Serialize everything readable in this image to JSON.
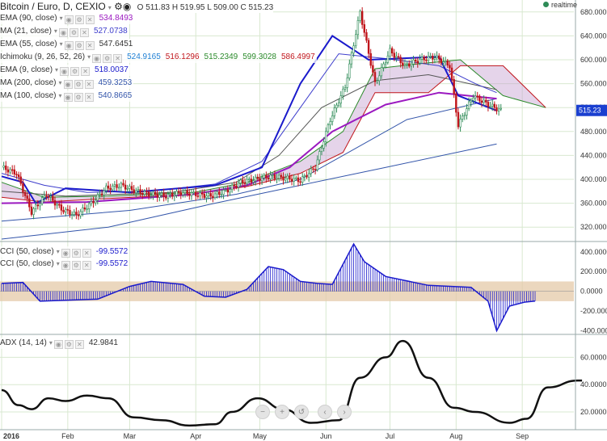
{
  "header": {
    "title": "Bitcoin / Euro, D, CEXIO",
    "ohlc": "O 511.83  H 519.95  L 509.00  C 515.23",
    "realtime_label": "realtime"
  },
  "legend_main": [
    {
      "name": "EMA (90, close)",
      "values": [
        "534.8493"
      ],
      "colors": [
        "#9b19c0"
      ]
    },
    {
      "name": "MA (21, close)",
      "values": [
        "527.0738"
      ],
      "colors": [
        "#3d3dcc"
      ]
    },
    {
      "name": "EMA (55, close)",
      "values": [
        "547.6451"
      ],
      "colors": [
        "#333333"
      ]
    },
    {
      "name": "Ichimoku (9, 26, 52, 26)",
      "values": [
        "524.9165",
        "516.1296",
        "515.2349",
        "599.3028",
        "586.4997"
      ],
      "colors": [
        "#1e7fd4",
        "#c0151b",
        "#2a8a2a",
        "#2a8a2a",
        "#c0151b"
      ]
    },
    {
      "name": "EMA (9, close)",
      "values": [
        "518.0037"
      ],
      "colors": [
        "#1a1acc"
      ]
    },
    {
      "name": "MA (200, close)",
      "values": [
        "459.3253"
      ],
      "colors": [
        "#3355aa"
      ]
    },
    {
      "name": "MA (100, close)",
      "values": [
        "540.8665"
      ],
      "colors": [
        "#3355aa"
      ]
    }
  ],
  "legend_cci": [
    {
      "name": "CCI (50, close)",
      "value": "-99.5572",
      "color": "#1a1acc"
    },
    {
      "name": "CCI (50, close)",
      "value": "-99.5572",
      "color": "#1a1acc"
    }
  ],
  "legend_adx": {
    "name": "ADX (14, 14)",
    "value": "42.9841",
    "color": "#333333"
  },
  "last_price_label": "515.23",
  "colors": {
    "candle_up": "#2e8b57",
    "candle_down": "#c0151b",
    "cloud_fill": "#c6a0d0",
    "cci_band": "#e4c9a8",
    "grid": "#d8e8d0",
    "price_badge": "#1a3fd0"
  },
  "nav_icons": [
    "zoom-out-icon",
    "zoom-in-icon",
    "reset-icon",
    "scroll-left-icon",
    "scroll-right-icon"
  ],
  "chart_data": [
    {
      "type": "candlestick",
      "title": "Bitcoin / Euro, D, CEXIO",
      "x_ticks": [
        "2016",
        "Feb",
        "Mar",
        "Apr",
        "May",
        "Jun",
        "Jul",
        "Aug",
        "Sep"
      ],
      "y_ticks": [
        "320.000",
        "360.000",
        "400.000",
        "440.000",
        "480.000",
        "520.000",
        "560.000",
        "600.000",
        "640.000",
        "680.000"
      ],
      "ylim": [
        300,
        700
      ],
      "grid": true,
      "last_price": 515.23,
      "close_series": [
        {
          "date": "2016-01-01",
          "close": 420
        },
        {
          "date": "2016-01-08",
          "close": 410
        },
        {
          "date": "2016-01-15",
          "close": 345
        },
        {
          "date": "2016-01-22",
          "close": 375
        },
        {
          "date": "2016-01-29",
          "close": 350
        },
        {
          "date": "2016-02-05",
          "close": 340
        },
        {
          "date": "2016-02-12",
          "close": 360
        },
        {
          "date": "2016-02-19",
          "close": 385
        },
        {
          "date": "2016-02-26",
          "close": 390
        },
        {
          "date": "2016-03-04",
          "close": 380
        },
        {
          "date": "2016-03-11",
          "close": 375
        },
        {
          "date": "2016-03-18",
          "close": 372
        },
        {
          "date": "2016-03-25",
          "close": 378
        },
        {
          "date": "2016-04-01",
          "close": 375
        },
        {
          "date": "2016-04-08",
          "close": 372
        },
        {
          "date": "2016-04-15",
          "close": 380
        },
        {
          "date": "2016-04-22",
          "close": 395
        },
        {
          "date": "2016-04-29",
          "close": 400
        },
        {
          "date": "2016-05-06",
          "close": 405
        },
        {
          "date": "2016-05-13",
          "close": 402
        },
        {
          "date": "2016-05-20",
          "close": 398
        },
        {
          "date": "2016-05-27",
          "close": 420
        },
        {
          "date": "2016-06-03",
          "close": 500
        },
        {
          "date": "2016-06-10",
          "close": 555
        },
        {
          "date": "2016-06-17",
          "close": 680
        },
        {
          "date": "2016-06-24",
          "close": 560
        },
        {
          "date": "2016-07-01",
          "close": 615
        },
        {
          "date": "2016-07-08",
          "close": 590
        },
        {
          "date": "2016-07-15",
          "close": 600
        },
        {
          "date": "2016-07-22",
          "close": 605
        },
        {
          "date": "2016-07-29",
          "close": 590
        },
        {
          "date": "2016-08-02",
          "close": 490
        },
        {
          "date": "2016-08-09",
          "close": 540
        },
        {
          "date": "2016-08-16",
          "close": 525
        },
        {
          "date": "2016-08-22",
          "close": 515
        }
      ],
      "indicators": {
        "ema_9": [
          [
            0,
            405
          ],
          [
            10,
            395
          ],
          [
            16,
            360
          ],
          [
            30,
            385
          ],
          [
            60,
            378
          ],
          [
            100,
            390
          ],
          [
            122,
            420
          ],
          [
            140,
            560
          ],
          [
            155,
            640
          ],
          [
            172,
            600
          ],
          [
            205,
            605
          ],
          [
            214,
            540
          ],
          [
            232,
            515
          ]
        ],
        "ma_21": [
          [
            0,
            410
          ],
          [
            20,
            390
          ],
          [
            40,
            378
          ],
          [
            70,
            380
          ],
          [
            100,
            392
          ],
          [
            122,
            430
          ],
          [
            140,
            520
          ],
          [
            158,
            610
          ],
          [
            180,
            602
          ],
          [
            205,
            590
          ],
          [
            222,
            560
          ],
          [
            232,
            545
          ]
        ],
        "ema_55": [
          [
            0,
            380
          ],
          [
            30,
            372
          ],
          [
            80,
            378
          ],
          [
            110,
            395
          ],
          [
            130,
            440
          ],
          [
            150,
            520
          ],
          [
            175,
            565
          ],
          [
            200,
            575
          ],
          [
            232,
            550
          ]
        ],
        "ema_90": [
          [
            0,
            360
          ],
          [
            40,
            362
          ],
          [
            90,
            375
          ],
          [
            115,
            390
          ],
          [
            135,
            420
          ],
          [
            155,
            480
          ],
          [
            180,
            525
          ],
          [
            205,
            545
          ],
          [
            232,
            535
          ]
        ],
        "ma_100": [
          [
            0,
            330
          ],
          [
            60,
            348
          ],
          [
            110,
            375
          ],
          [
            140,
            400
          ],
          [
            160,
            440
          ],
          [
            190,
            500
          ],
          [
            232,
            535
          ]
        ],
        "ma_200": [
          [
            0,
            300
          ],
          [
            50,
            320
          ],
          [
            100,
            360
          ],
          [
            140,
            390
          ],
          [
            180,
            420
          ],
          [
            232,
            459
          ]
        ],
        "kumo_a": [
          [
            0,
            395
          ],
          [
            20,
            370
          ],
          [
            50,
            372
          ],
          [
            90,
            378
          ],
          [
            115,
            395
          ],
          [
            140,
            430
          ],
          [
            160,
            480
          ],
          [
            175,
            585
          ],
          [
            200,
            595
          ],
          [
            215,
            600
          ],
          [
            235,
            540
          ],
          [
            255,
            520
          ]
        ],
        "kumo_b": [
          [
            0,
            370
          ],
          [
            20,
            362
          ],
          [
            50,
            368
          ],
          [
            90,
            375
          ],
          [
            115,
            388
          ],
          [
            140,
            410
          ],
          [
            160,
            445
          ],
          [
            175,
            545
          ],
          [
            200,
            545
          ],
          [
            215,
            590
          ],
          [
            235,
            590
          ],
          [
            255,
            520
          ]
        ]
      }
    },
    {
      "type": "area",
      "title": "CCI (50, close)",
      "y_ticks": [
        "-400.0000",
        "-200.0000",
        "0.0000",
        "200.0000",
        "400.0000"
      ],
      "ylim": [
        -420,
        480
      ],
      "band": [
        -100,
        100
      ],
      "last_value": -99.5572,
      "series": [
        {
          "name": "CCI (50, close)",
          "values": [
            [
              0,
              80
            ],
            [
              10,
              90
            ],
            [
              18,
              -100
            ],
            [
              30,
              -90
            ],
            [
              45,
              -80
            ],
            [
              60,
              50
            ],
            [
              70,
              100
            ],
            [
              85,
              70
            ],
            [
              95,
              -50
            ],
            [
              105,
              -60
            ],
            [
              115,
              20
            ],
            [
              125,
              250
            ],
            [
              132,
              220
            ],
            [
              140,
              100
            ],
            [
              148,
              80
            ],
            [
              155,
              70
            ],
            [
              165,
              480
            ],
            [
              170,
              300
            ],
            [
              180,
              150
            ],
            [
              200,
              60
            ],
            [
              220,
              40
            ],
            [
              228,
              -100
            ],
            [
              232,
              -400
            ],
            [
              238,
              -150
            ],
            [
              245,
              -110
            ],
            [
              250,
              -99.5572
            ]
          ]
        }
      ]
    },
    {
      "type": "line",
      "title": "ADX (14, 14)",
      "y_ticks": [
        "20.0000",
        "40.0000",
        "60.0000"
      ],
      "ylim": [
        7,
        75
      ],
      "last_value": 42.9841,
      "series": [
        {
          "name": "ADX (14, 14)",
          "values": [
            [
              0,
              36
            ],
            [
              8,
              25
            ],
            [
              14,
              22
            ],
            [
              22,
              30
            ],
            [
              30,
              28
            ],
            [
              40,
              32
            ],
            [
              50,
              30
            ],
            [
              62,
              16
            ],
            [
              75,
              14
            ],
            [
              88,
              10
            ],
            [
              100,
              11
            ],
            [
              108,
              20
            ],
            [
              120,
              30
            ],
            [
              132,
              22
            ],
            [
              145,
              12
            ],
            [
              158,
              14
            ],
            [
              168,
              45
            ],
            [
              180,
              60
            ],
            [
              188,
              72
            ],
            [
              200,
              45
            ],
            [
              212,
              23
            ],
            [
              222,
              20
            ],
            [
              238,
              12
            ],
            [
              246,
              15
            ],
            [
              256,
              38
            ],
            [
              270,
              43
            ],
            [
              272,
              42.9841
            ]
          ]
        }
      ]
    }
  ]
}
